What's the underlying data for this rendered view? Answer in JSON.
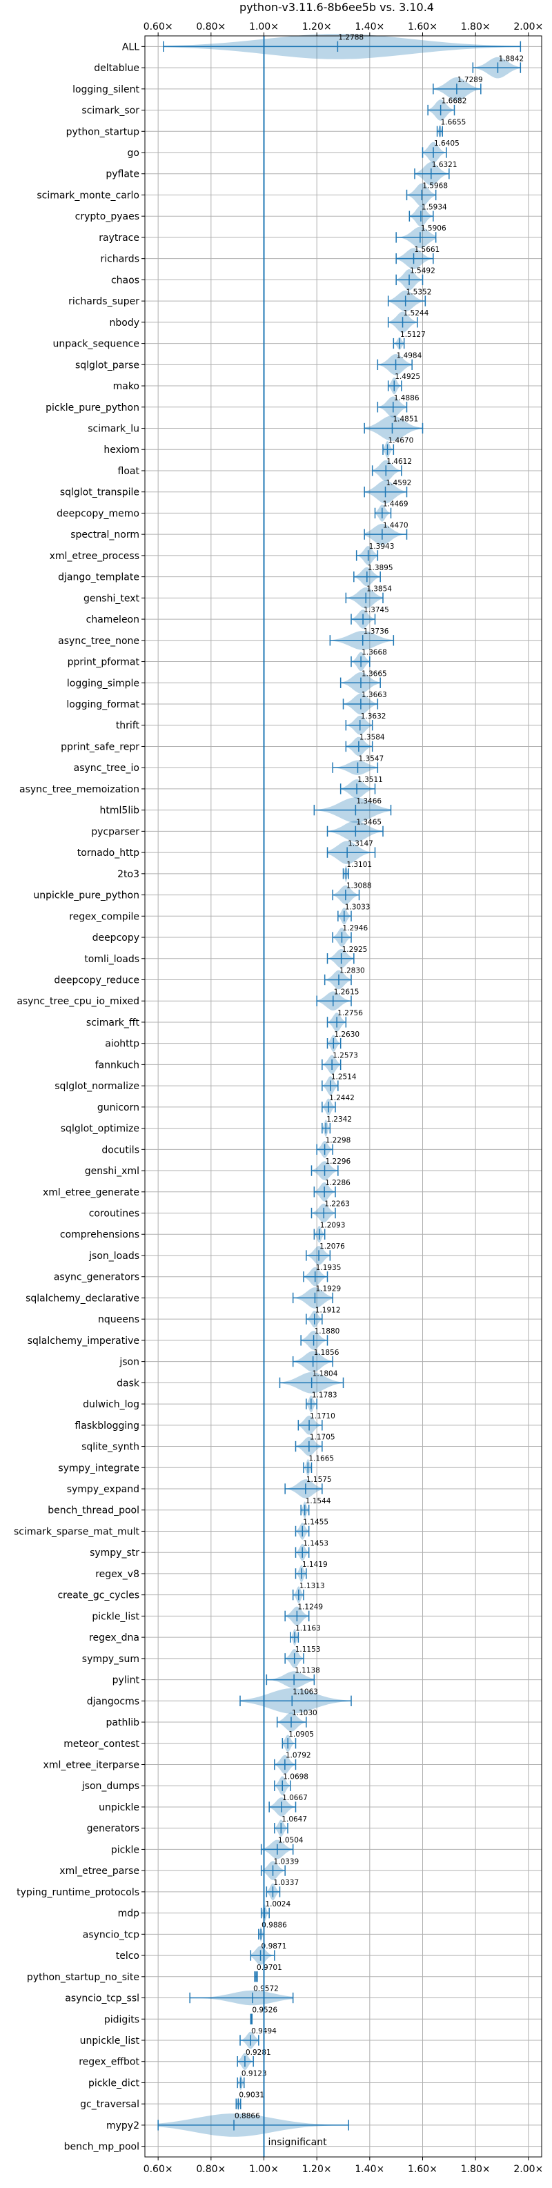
{
  "chart_data": {
    "type": "violin",
    "title": "python-v3.11.6-8b6ee5b vs. 3.10.4",
    "xlim": [
      0.55,
      2.05
    ],
    "xticks": [
      0.6,
      0.8,
      1.0,
      1.2,
      1.4,
      1.6,
      1.8,
      2.0
    ],
    "xtick_labels": [
      "0.60×",
      "0.80×",
      "1.00×",
      "1.20×",
      "1.40×",
      "1.60×",
      "1.80×",
      "2.00×"
    ],
    "reference_line": 1.0,
    "grid": true,
    "annotation": "insignificant",
    "colors": {
      "violin": "#1f77b4",
      "reference": "#1f77b4",
      "grid": "#b0b0b0"
    },
    "rows": [
      {
        "name": "ALL",
        "median": 1.2788,
        "lo": 0.62,
        "hi": 1.97,
        "width": 0.6
      },
      {
        "name": "deltablue",
        "median": 1.8842,
        "lo": 1.79,
        "hi": 1.97,
        "width": 0.5
      },
      {
        "name": "logging_silent",
        "median": 1.7289,
        "lo": 1.64,
        "hi": 1.82,
        "width": 0.55
      },
      {
        "name": "scimark_sor",
        "median": 1.6682,
        "lo": 1.62,
        "hi": 1.72,
        "width": 0.5
      },
      {
        "name": "python_startup",
        "median": 1.6655,
        "lo": 1.655,
        "hi": 1.675,
        "width": 0.3
      },
      {
        "name": "go",
        "median": 1.6405,
        "lo": 1.6,
        "hi": 1.69,
        "width": 0.5
      },
      {
        "name": "pyflate",
        "median": 1.6321,
        "lo": 1.57,
        "hi": 1.7,
        "width": 0.55
      },
      {
        "name": "scimark_monte_carlo",
        "median": 1.5968,
        "lo": 1.54,
        "hi": 1.65,
        "width": 0.55
      },
      {
        "name": "crypto_pyaes",
        "median": 1.5934,
        "lo": 1.55,
        "hi": 1.64,
        "width": 0.5
      },
      {
        "name": "raytrace",
        "median": 1.5906,
        "lo": 1.5,
        "hi": 1.65,
        "width": 0.5
      },
      {
        "name": "richards",
        "median": 1.5661,
        "lo": 1.5,
        "hi": 1.64,
        "width": 0.5
      },
      {
        "name": "chaos",
        "median": 1.5492,
        "lo": 1.5,
        "hi": 1.6,
        "width": 0.5
      },
      {
        "name": "richards_super",
        "median": 1.5352,
        "lo": 1.47,
        "hi": 1.61,
        "width": 0.5
      },
      {
        "name": "nbody",
        "median": 1.5244,
        "lo": 1.47,
        "hi": 1.58,
        "width": 0.5
      },
      {
        "name": "unpack_sequence",
        "median": 1.5127,
        "lo": 1.49,
        "hi": 1.53,
        "width": 0.3
      },
      {
        "name": "sqlglot_parse",
        "median": 1.4984,
        "lo": 1.43,
        "hi": 1.56,
        "width": 0.5
      },
      {
        "name": "mako",
        "median": 1.4925,
        "lo": 1.47,
        "hi": 1.52,
        "width": 0.4
      },
      {
        "name": "pickle_pure_python",
        "median": 1.4886,
        "lo": 1.43,
        "hi": 1.54,
        "width": 0.5
      },
      {
        "name": "scimark_lu",
        "median": 1.4851,
        "lo": 1.38,
        "hi": 1.6,
        "width": 0.6
      },
      {
        "name": "hexiom",
        "median": 1.467,
        "lo": 1.45,
        "hi": 1.49,
        "width": 0.4
      },
      {
        "name": "float",
        "median": 1.4612,
        "lo": 1.41,
        "hi": 1.52,
        "width": 0.5
      },
      {
        "name": "sqlglot_transpile",
        "median": 1.4592,
        "lo": 1.38,
        "hi": 1.54,
        "width": 0.55
      },
      {
        "name": "deepcopy_memo",
        "median": 1.4469,
        "lo": 1.42,
        "hi": 1.48,
        "width": 0.4
      },
      {
        "name": "spectral_norm",
        "median": 1.447,
        "lo": 1.38,
        "hi": 1.54,
        "width": 0.5
      },
      {
        "name": "xml_etree_process",
        "median": 1.3943,
        "lo": 1.35,
        "hi": 1.43,
        "width": 0.45
      },
      {
        "name": "django_template",
        "median": 1.3895,
        "lo": 1.34,
        "hi": 1.44,
        "width": 0.45
      },
      {
        "name": "genshi_text",
        "median": 1.3854,
        "lo": 1.31,
        "hi": 1.45,
        "width": 0.5
      },
      {
        "name": "chameleon",
        "median": 1.3745,
        "lo": 1.33,
        "hi": 1.42,
        "width": 0.45
      },
      {
        "name": "async_tree_none",
        "median": 1.3736,
        "lo": 1.25,
        "hi": 1.49,
        "width": 0.45
      },
      {
        "name": "pprint_pformat",
        "median": 1.3668,
        "lo": 1.33,
        "hi": 1.4,
        "width": 0.45
      },
      {
        "name": "logging_simple",
        "median": 1.3665,
        "lo": 1.29,
        "hi": 1.44,
        "width": 0.5
      },
      {
        "name": "logging_format",
        "median": 1.3663,
        "lo": 1.3,
        "hi": 1.43,
        "width": 0.5
      },
      {
        "name": "thrift",
        "median": 1.3632,
        "lo": 1.31,
        "hi": 1.41,
        "width": 0.45
      },
      {
        "name": "pprint_safe_repr",
        "median": 1.3584,
        "lo": 1.31,
        "hi": 1.41,
        "width": 0.45
      },
      {
        "name": "async_tree_io",
        "median": 1.3547,
        "lo": 1.26,
        "hi": 1.43,
        "width": 0.35
      },
      {
        "name": "async_tree_memoization",
        "median": 1.3511,
        "lo": 1.29,
        "hi": 1.42,
        "width": 0.45
      },
      {
        "name": "html5lib",
        "median": 1.3466,
        "lo": 1.19,
        "hi": 1.48,
        "width": 0.6
      },
      {
        "name": "pycparser",
        "median": 1.3465,
        "lo": 1.24,
        "hi": 1.45,
        "width": 0.5
      },
      {
        "name": "tornado_http",
        "median": 1.3147,
        "lo": 1.24,
        "hi": 1.42,
        "width": 0.55
      },
      {
        "name": "2to3",
        "median": 1.3101,
        "lo": 1.3,
        "hi": 1.32,
        "width": 0.4
      },
      {
        "name": "unpickle_pure_python",
        "median": 1.3088,
        "lo": 1.26,
        "hi": 1.36,
        "width": 0.45
      },
      {
        "name": "regex_compile",
        "median": 1.3033,
        "lo": 1.28,
        "hi": 1.33,
        "width": 0.4
      },
      {
        "name": "deepcopy",
        "median": 1.2946,
        "lo": 1.26,
        "hi": 1.33,
        "width": 0.45
      },
      {
        "name": "tomli_loads",
        "median": 1.2925,
        "lo": 1.24,
        "hi": 1.34,
        "width": 0.45
      },
      {
        "name": "deepcopy_reduce",
        "median": 1.283,
        "lo": 1.23,
        "hi": 1.33,
        "width": 0.45
      },
      {
        "name": "async_tree_cpu_io_mixed",
        "median": 1.2615,
        "lo": 1.2,
        "hi": 1.33,
        "width": 0.45
      },
      {
        "name": "scimark_fft",
        "median": 1.2756,
        "lo": 1.24,
        "hi": 1.31,
        "width": 0.45
      },
      {
        "name": "aiohttp",
        "median": 1.263,
        "lo": 1.24,
        "hi": 1.29,
        "width": 0.4
      },
      {
        "name": "fannkuch",
        "median": 1.2573,
        "lo": 1.22,
        "hi": 1.29,
        "width": 0.45
      },
      {
        "name": "sqlglot_normalize",
        "median": 1.2514,
        "lo": 1.22,
        "hi": 1.28,
        "width": 0.45
      },
      {
        "name": "gunicorn",
        "median": 1.2442,
        "lo": 1.22,
        "hi": 1.27,
        "width": 0.4
      },
      {
        "name": "sqlglot_optimize",
        "median": 1.2342,
        "lo": 1.22,
        "hi": 1.25,
        "width": 0.4
      },
      {
        "name": "docutils",
        "median": 1.2298,
        "lo": 1.2,
        "hi": 1.26,
        "width": 0.4
      },
      {
        "name": "genshi_xml",
        "median": 1.2296,
        "lo": 1.18,
        "hi": 1.28,
        "width": 0.45
      },
      {
        "name": "xml_etree_generate",
        "median": 1.2286,
        "lo": 1.19,
        "hi": 1.27,
        "width": 0.45
      },
      {
        "name": "coroutines",
        "median": 1.2263,
        "lo": 1.18,
        "hi": 1.27,
        "width": 0.45
      },
      {
        "name": "comprehensions",
        "median": 1.2093,
        "lo": 1.19,
        "hi": 1.23,
        "width": 0.4
      },
      {
        "name": "json_loads",
        "median": 1.2076,
        "lo": 1.16,
        "hi": 1.25,
        "width": 0.45
      },
      {
        "name": "async_generators",
        "median": 1.1935,
        "lo": 1.15,
        "hi": 1.24,
        "width": 0.45
      },
      {
        "name": "sqlalchemy_declarative",
        "median": 1.1929,
        "lo": 1.11,
        "hi": 1.26,
        "width": 0.5
      },
      {
        "name": "nqueens",
        "median": 1.1912,
        "lo": 1.16,
        "hi": 1.22,
        "width": 0.4
      },
      {
        "name": "sqlalchemy_imperative",
        "median": 1.188,
        "lo": 1.14,
        "hi": 1.24,
        "width": 0.45
      },
      {
        "name": "json",
        "median": 1.1856,
        "lo": 1.11,
        "hi": 1.26,
        "width": 0.5
      },
      {
        "name": "dask",
        "median": 1.1804,
        "lo": 1.06,
        "hi": 1.3,
        "width": 0.5
      },
      {
        "name": "dulwich_log",
        "median": 1.1783,
        "lo": 1.16,
        "hi": 1.2,
        "width": 0.4
      },
      {
        "name": "flaskblogging",
        "median": 1.171,
        "lo": 1.13,
        "hi": 1.22,
        "width": 0.45
      },
      {
        "name": "sqlite_synth",
        "median": 1.1705,
        "lo": 1.12,
        "hi": 1.22,
        "width": 0.45
      },
      {
        "name": "sympy_integrate",
        "median": 1.1665,
        "lo": 1.15,
        "hi": 1.18,
        "width": 0.4
      },
      {
        "name": "sympy_expand",
        "median": 1.1575,
        "lo": 1.08,
        "hi": 1.22,
        "width": 0.45
      },
      {
        "name": "bench_thread_pool",
        "median": 1.1544,
        "lo": 1.14,
        "hi": 1.17,
        "width": 0.4
      },
      {
        "name": "scimark_sparse_mat_mult",
        "median": 1.1455,
        "lo": 1.12,
        "hi": 1.17,
        "width": 0.4
      },
      {
        "name": "sympy_str",
        "median": 1.1453,
        "lo": 1.12,
        "hi": 1.17,
        "width": 0.4
      },
      {
        "name": "regex_v8",
        "median": 1.1419,
        "lo": 1.12,
        "hi": 1.16,
        "width": 0.4
      },
      {
        "name": "create_gc_cycles",
        "median": 1.1313,
        "lo": 1.11,
        "hi": 1.15,
        "width": 0.4
      },
      {
        "name": "pickle_list",
        "median": 1.1249,
        "lo": 1.08,
        "hi": 1.17,
        "width": 0.45
      },
      {
        "name": "regex_dna",
        "median": 1.1163,
        "lo": 1.1,
        "hi": 1.13,
        "width": 0.4
      },
      {
        "name": "sympy_sum",
        "median": 1.1153,
        "lo": 1.08,
        "hi": 1.15,
        "width": 0.45
      },
      {
        "name": "pylint",
        "median": 1.1138,
        "lo": 1.01,
        "hi": 1.19,
        "width": 0.4
      },
      {
        "name": "djangocms",
        "median": 1.1063,
        "lo": 0.91,
        "hi": 1.33,
        "width": 0.6
      },
      {
        "name": "pathlib",
        "median": 1.103,
        "lo": 1.05,
        "hi": 1.16,
        "width": 0.45
      },
      {
        "name": "meteor_contest",
        "median": 1.0905,
        "lo": 1.07,
        "hi": 1.12,
        "width": 0.4
      },
      {
        "name": "xml_etree_iterparse",
        "median": 1.0792,
        "lo": 1.04,
        "hi": 1.12,
        "width": 0.45
      },
      {
        "name": "json_dumps",
        "median": 1.0698,
        "lo": 1.04,
        "hi": 1.1,
        "width": 0.45
      },
      {
        "name": "unpickle",
        "median": 1.0667,
        "lo": 1.02,
        "hi": 1.12,
        "width": 0.45
      },
      {
        "name": "generators",
        "median": 1.0647,
        "lo": 1.04,
        "hi": 1.09,
        "width": 0.4
      },
      {
        "name": "pickle",
        "median": 1.0504,
        "lo": 0.99,
        "hi": 1.11,
        "width": 0.45
      },
      {
        "name": "xml_etree_parse",
        "median": 1.0339,
        "lo": 0.99,
        "hi": 1.08,
        "width": 0.45
      },
      {
        "name": "typing_runtime_protocols",
        "median": 1.0337,
        "lo": 1.01,
        "hi": 1.06,
        "width": 0.4
      },
      {
        "name": "mdp",
        "median": 1.0024,
        "lo": 0.99,
        "hi": 1.02,
        "width": 0.4
      },
      {
        "name": "asyncio_tcp",
        "median": 0.9886,
        "lo": 0.98,
        "hi": 1.0,
        "width": 0.35
      },
      {
        "name": "telco",
        "median": 0.9871,
        "lo": 0.95,
        "hi": 1.04,
        "width": 0.45
      },
      {
        "name": "python_startup_no_site",
        "median": 0.9701,
        "lo": 0.965,
        "hi": 0.975,
        "width": 0.25
      },
      {
        "name": "asyncio_tcp_ssl",
        "median": 0.9572,
        "lo": 0.72,
        "hi": 1.11,
        "width": 0.35
      },
      {
        "name": "pidigits",
        "median": 0.9526,
        "lo": 0.95,
        "hi": 0.955,
        "width": 0.15
      },
      {
        "name": "unpickle_list",
        "median": 0.9494,
        "lo": 0.91,
        "hi": 0.98,
        "width": 0.4
      },
      {
        "name": "regex_effbot",
        "median": 0.9281,
        "lo": 0.9,
        "hi": 0.96,
        "width": 0.4
      },
      {
        "name": "pickle_dict",
        "median": 0.9123,
        "lo": 0.9,
        "hi": 0.925,
        "width": 0.35
      },
      {
        "name": "gc_traversal",
        "median": 0.9031,
        "lo": 0.895,
        "hi": 0.912,
        "width": 0.3
      },
      {
        "name": "mypy2",
        "median": 0.8866,
        "lo": 0.6,
        "hi": 1.32,
        "width": 0.55
      },
      {
        "name": "bench_mp_pool",
        "median": null,
        "lo": null,
        "hi": null,
        "width": 0
      }
    ]
  }
}
